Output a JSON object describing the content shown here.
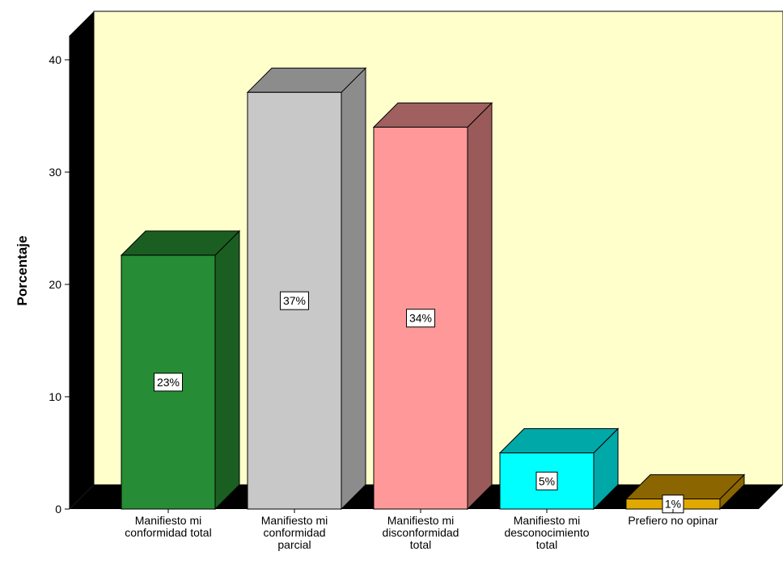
{
  "chart_data": {
    "type": "bar",
    "title": "",
    "xlabel": "",
    "ylabel": "Porcentaje",
    "ylim": [
      0,
      42
    ],
    "yticks": [
      0,
      10,
      20,
      30,
      40
    ],
    "grid": false,
    "categories": [
      [
        "Manifiesto mi",
        "conformidad total"
      ],
      [
        "Manifiesto mi",
        "conformidad",
        "parcial"
      ],
      [
        "Manifiesto mi",
        "disconformidad",
        "total"
      ],
      [
        "Manifiesto mi",
        "desconocimiento",
        "total"
      ],
      [
        "Prefiero no opinar"
      ]
    ],
    "values": [
      22.6,
      37.1,
      34.0,
      5.0,
      0.9
    ],
    "data_labels": [
      "23%",
      "37%",
      "34%",
      "5%",
      "1%"
    ],
    "colors": {
      "front": [
        "#268c35",
        "#c8c8c8",
        "#ff9999",
        "#00ffff",
        "#e0a800"
      ],
      "top": [
        "#1b5e22",
        "#8c8c8c",
        "#a06060",
        "#00a8a8",
        "#8a6500"
      ],
      "side": [
        "#1b5e22",
        "#8c8c8c",
        "#9a5a5a",
        "#00a8a8",
        "#8a6500"
      ],
      "wall": "#ffffcc",
      "floor": "#000000"
    }
  }
}
